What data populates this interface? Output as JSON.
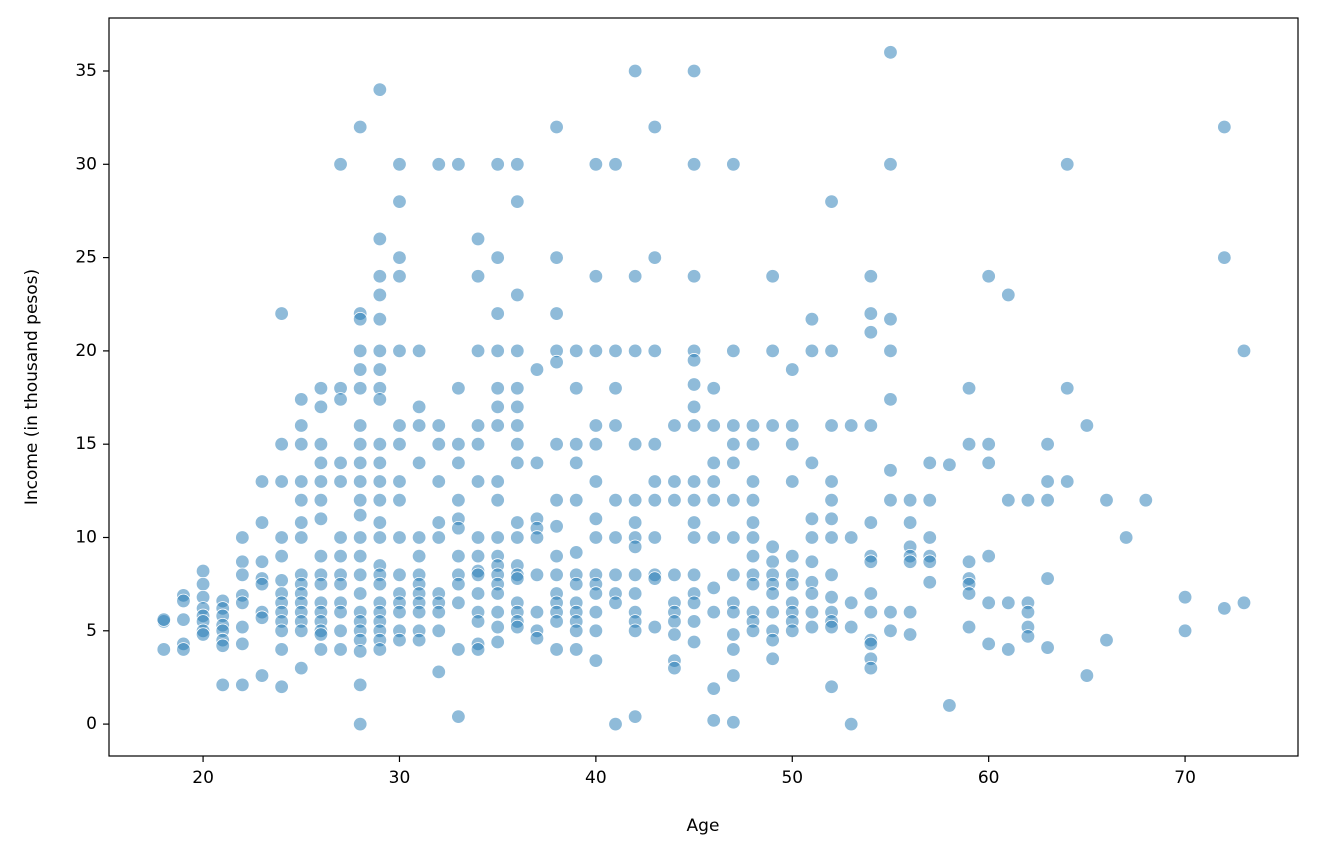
{
  "chart_data": {
    "type": "scatter",
    "x_label": "Age",
    "y_label": "Income (in thousand pesos)",
    "color": "#1f77b4",
    "xlim": [
      15.21,
      75.75
    ],
    "ylim": [
      -1.71,
      37.84
    ],
    "xticks": [
      20,
      30,
      40,
      50,
      60,
      70
    ],
    "yticks": [
      0,
      5,
      10,
      15,
      20,
      25,
      30,
      35
    ],
    "x": [
      18,
      18,
      18,
      19,
      19,
      19,
      19,
      19,
      20,
      20,
      20,
      20,
      20,
      20,
      20,
      20,
      21,
      21,
      21,
      21,
      21,
      21,
      21,
      21,
      22,
      22,
      22,
      22,
      22,
      22,
      22,
      22,
      23,
      23,
      23,
      23,
      23,
      23,
      23,
      23,
      24,
      24,
      24,
      24,
      24,
      24,
      24,
      24,
      24,
      24,
      24,
      24,
      24,
      25,
      25,
      25,
      25,
      25,
      25,
      25,
      25,
      25,
      25,
      25,
      25,
      25,
      25,
      25,
      26,
      26,
      26,
      26,
      26,
      26,
      26,
      26,
      26,
      26,
      26,
      26,
      26,
      26,
      26,
      26,
      27,
      27,
      27,
      27,
      27,
      27,
      27,
      27,
      27,
      27,
      27,
      27,
      27,
      28,
      28,
      28,
      28,
      28,
      28,
      28,
      28,
      28,
      28,
      28,
      28,
      28,
      28,
      28,
      28,
      28,
      28,
      28,
      28,
      28,
      28,
      28,
      29,
      29,
      29,
      29,
      29,
      29,
      29,
      29,
      29,
      29,
      29,
      29,
      29,
      29,
      29,
      29,
      29,
      29,
      29,
      29,
      29,
      29,
      29,
      29,
      30,
      30,
      30,
      30,
      30,
      30,
      30,
      30,
      30,
      30,
      30,
      30,
      30,
      30,
      30,
      30,
      31,
      31,
      31,
      31,
      31,
      31,
      31,
      31,
      31,
      31,
      31,
      31,
      31,
      32,
      32,
      32,
      32,
      32,
      32,
      32,
      32,
      32,
      32,
      32,
      33,
      33,
      33,
      33,
      33,
      33,
      33,
      33,
      33,
      33,
      33,
      33,
      33,
      34,
      34,
      34,
      34,
      34,
      34,
      34,
      34,
      34,
      34,
      34,
      34,
      34,
      34,
      34,
      35,
      35,
      35,
      35,
      35,
      35,
      35,
      35,
      35,
      35,
      35,
      35,
      35,
      35,
      35,
      35,
      35,
      35,
      36,
      36,
      36,
      36,
      36,
      36,
      36,
      36,
      36,
      36,
      36,
      36,
      36,
      36,
      36,
      36,
      36,
      36,
      37,
      37,
      37,
      37,
      37,
      37,
      37,
      37,
      37,
      38,
      38,
      38,
      38,
      38,
      38,
      38,
      38,
      38,
      38,
      38,
      38,
      38,
      38,
      38,
      39,
      39,
      39,
      39,
      39,
      39,
      39,
      39,
      39,
      39,
      39,
      39,
      39,
      40,
      40,
      40,
      40,
      40,
      40,
      40,
      40,
      40,
      40,
      40,
      40,
      40,
      40,
      41,
      41,
      41,
      41,
      41,
      41,
      41,
      41,
      41,
      41,
      42,
      42,
      42,
      42,
      42,
      42,
      42,
      42,
      42,
      42,
      42,
      42,
      42,
      42,
      43,
      43,
      43,
      43,
      43,
      43,
      43,
      43,
      43,
      43,
      44,
      44,
      44,
      44,
      44,
      44,
      44,
      44,
      44,
      44,
      45,
      45,
      45,
      45,
      45,
      45,
      45,
      45,
      45,
      45,
      45,
      45,
      45,
      45,
      45,
      45,
      45,
      46,
      46,
      46,
      46,
      46,
      46,
      46,
      46,
      46,
      46,
      47,
      47,
      47,
      47,
      47,
      47,
      47,
      47,
      47,
      47,
      47,
      47,
      47,
      47,
      48,
      48,
      48,
      48,
      48,
      48,
      48,
      48,
      48,
      48,
      48,
      48,
      49,
      49,
      49,
      49,
      49,
      49,
      49,
      49,
      49,
      49,
      49,
      49,
      50,
      50,
      50,
      50,
      50,
      50,
      50,
      50,
      50,
      50,
      50,
      51,
      51,
      51,
      51,
      51,
      51,
      51,
      51,
      51,
      51,
      52,
      52,
      52,
      52,
      52,
      52,
      52,
      52,
      52,
      52,
      52,
      52,
      52,
      53,
      53,
      53,
      53,
      53,
      54,
      54,
      54,
      54,
      54,
      54,
      54,
      54,
      54,
      54,
      54,
      54,
      54,
      55,
      55,
      55,
      55,
      55,
      55,
      55,
      55,
      55,
      56,
      56,
      56,
      56,
      56,
      56,
      56,
      57,
      57,
      57,
      57,
      57,
      57,
      58,
      58,
      59,
      59,
      59,
      59,
      59,
      59,
      59,
      60,
      60,
      60,
      60,
      60,
      60,
      61,
      61,
      61,
      61,
      62,
      62,
      62,
      62,
      62,
      63,
      63,
      63,
      63,
      63,
      64,
      64,
      64,
      65,
      65,
      66,
      66,
      67,
      68,
      70,
      70,
      72,
      72,
      72,
      73,
      73
    ],
    "values": [
      5.5,
      5.6,
      4,
      6.9,
      6.6,
      5.6,
      4.3,
      4,
      8.2,
      7.5,
      6.8,
      6.2,
      5.8,
      5.5,
      5,
      4.8,
      6.6,
      6.2,
      5.8,
      5.3,
      5,
      4.5,
      4.2,
      2.1,
      10,
      8.7,
      8,
      6.9,
      6.5,
      5.2,
      4.3,
      2.1,
      13,
      10.8,
      8.7,
      7.8,
      7.5,
      6,
      5.7,
      2.6,
      22,
      15,
      13,
      10,
      9,
      7.7,
      7,
      6.5,
      6,
      5.5,
      5,
      4,
      2,
      17.4,
      16,
      15,
      13,
      12,
      10.8,
      10,
      8,
      7.5,
      7,
      6.5,
      6,
      5.5,
      5,
      3,
      18,
      17,
      15,
      14,
      13,
      12,
      11,
      9,
      8,
      7.5,
      6.5,
      6,
      5.5,
      5,
      4.8,
      4,
      30,
      18,
      17.4,
      14,
      13,
      10,
      9,
      8,
      7.5,
      6.5,
      6,
      5,
      4,
      32,
      22,
      21.7,
      20,
      19,
      18,
      16,
      15,
      14,
      13,
      12,
      11.2,
      10,
      9,
      8,
      7,
      6,
      5.5,
      5,
      4.5,
      3.9,
      2.1,
      0,
      34,
      26,
      24,
      23,
      21.7,
      20,
      19,
      18,
      17.4,
      15,
      14,
      13,
      12,
      10.8,
      10,
      8.5,
      8,
      7.5,
      6.5,
      6,
      5.5,
      5,
      4.5,
      4,
      30,
      28,
      25,
      24,
      20,
      16,
      15,
      13,
      12,
      10,
      8,
      7,
      6.5,
      6,
      5,
      4.5,
      20,
      17,
      16,
      14,
      10,
      9,
      8,
      7.5,
      7,
      6.5,
      6,
      5,
      4.5,
      30,
      16,
      15,
      13,
      10.8,
      10,
      7,
      6.5,
      6,
      5,
      2.8,
      30,
      18,
      15,
      14,
      12,
      11,
      10.5,
      9,
      8,
      7.5,
      6.5,
      4,
      0.4,
      26,
      24,
      20,
      16,
      15,
      13,
      10,
      9,
      8.2,
      8,
      7,
      6,
      5.5,
      4.3,
      4,
      30,
      25,
      22,
      20,
      18,
      17,
      16,
      13,
      12,
      10,
      9,
      8.5,
      8,
      7.5,
      7,
      6,
      5.2,
      4.4,
      30,
      28,
      23,
      20,
      18,
      17,
      16,
      15,
      14,
      10.8,
      10,
      8.5,
      8,
      7.8,
      6.5,
      6,
      5.5,
      5.2,
      19,
      14,
      11,
      10.5,
      10,
      8,
      6,
      5,
      4.6,
      32,
      25,
      22,
      20,
      19.4,
      15,
      12,
      10.6,
      9,
      8,
      7,
      6.5,
      6,
      5.5,
      4,
      20,
      18,
      15,
      14,
      12,
      9.2,
      8,
      7.5,
      6.5,
      6,
      5.5,
      5,
      4,
      30,
      24,
      20,
      16,
      15,
      13,
      11,
      10,
      8,
      7.5,
      7,
      6,
      5,
      3.4,
      30,
      20,
      18,
      16,
      12,
      10,
      8,
      7,
      6.5,
      0,
      35,
      24,
      20,
      15,
      12,
      10.8,
      10,
      9.5,
      8,
      7,
      6,
      5.5,
      5,
      0.4,
      32,
      25,
      20,
      15,
      13,
      12,
      10,
      8,
      7.8,
      5.2,
      16,
      13,
      12,
      8,
      6.5,
      6,
      5.5,
      4.8,
      3.4,
      3,
      35,
      30,
      24,
      20,
      19.5,
      18.2,
      17,
      16,
      13,
      12,
      10.8,
      10,
      8,
      7,
      6.5,
      5.5,
      4.4,
      18,
      16,
      14,
      13,
      12,
      10,
      7.3,
      6,
      1.9,
      0.2,
      30,
      20,
      16,
      15,
      14,
      12,
      10,
      8,
      6.5,
      6,
      4.8,
      4,
      2.6,
      0.1,
      16,
      15,
      13,
      12,
      10.8,
      10,
      9,
      8,
      7.5,
      6,
      5.5,
      5,
      24,
      20,
      16,
      9.5,
      8.7,
      8,
      7.5,
      7,
      6,
      5,
      4.5,
      3.5,
      19,
      16,
      15,
      13,
      9,
      8,
      7.5,
      6.5,
      6,
      5.5,
      5,
      21.7,
      20,
      14,
      11,
      10,
      8.7,
      7.6,
      7,
      6,
      5.2,
      28,
      20,
      16,
      13,
      12,
      11,
      10,
      8,
      6.8,
      6,
      5.5,
      5.2,
      2,
      16,
      10,
      6.5,
      5.2,
      0,
      24,
      22,
      21,
      16,
      10.8,
      9,
      8.7,
      7,
      6,
      4.5,
      4.3,
      3.5,
      3,
      36,
      30,
      21.7,
      20,
      17.4,
      13.6,
      12,
      6,
      5,
      12,
      10.8,
      9.5,
      9,
      8.7,
      6,
      4.8,
      14,
      12,
      10,
      9,
      8.7,
      7.6,
      13.9,
      1,
      18,
      15,
      8.7,
      7.8,
      7.5,
      7,
      5.2,
      24,
      15,
      14,
      9,
      6.5,
      4.3,
      23,
      12,
      6.5,
      4,
      12,
      6.5,
      6,
      5.2,
      4.7,
      15,
      13,
      12,
      7.8,
      4.1,
      30,
      18,
      13,
      16,
      2.6,
      12,
      4.5,
      10,
      12,
      6.8,
      5,
      32,
      25,
      6.2,
      20,
      6.5
    ]
  }
}
